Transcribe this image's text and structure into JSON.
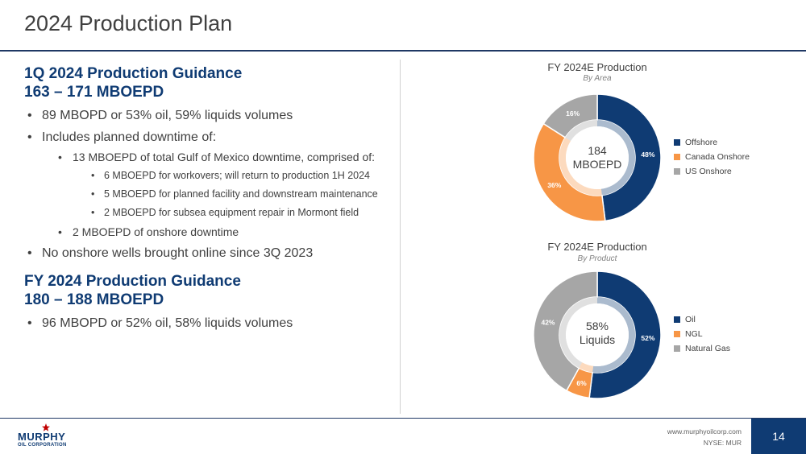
{
  "title": "2024 Production Plan",
  "left": {
    "q1_heading_line1": "1Q 2024 Production Guidance",
    "q1_heading_line2": "163 – 171 MBOEPD",
    "q1_bullets": {
      "b1": "89 MBOPD or 53% oil, 59% liquids volumes",
      "b2": "Includes planned downtime of:",
      "b2_sub1": "13 MBOEPD of total Gulf of Mexico downtime, comprised of:",
      "b2_sub1_a": "6 MBOEPD for workovers; will return to production 1H 2024",
      "b2_sub1_b": "5 MBOEPD for planned facility and downstream maintenance",
      "b2_sub1_c": "2 MBOEPD for subsea equipment repair in Mormont field",
      "b2_sub2": "2 MBOEPD of onshore downtime",
      "b3": "No onshore wells brought online since 3Q 2023"
    },
    "fy_heading_line1": "FY 2024 Production Guidance",
    "fy_heading_line2": "180 – 188 MBOEPD",
    "fy_bullets": {
      "b1": "96 MBOPD or 52% oil, 58% liquids volumes"
    }
  },
  "chart_data": [
    {
      "type": "pie",
      "title": "FY 2024E Production",
      "subtitle": "By Area",
      "center_label_line1": "184",
      "center_label_line2": "MBOEPD",
      "categories": [
        "Offshore",
        "Canada Onshore",
        "US Onshore"
      ],
      "values": [
        48,
        36,
        16
      ],
      "labels": [
        "48%",
        "36%",
        "16%"
      ],
      "colors": [
        "#0f3b73",
        "#f79646",
        "#a6a6a6"
      ],
      "legend": "right"
    },
    {
      "type": "pie",
      "title": "FY 2024E Production",
      "subtitle": "By Product",
      "center_label_line1": "58%",
      "center_label_line2": "Liquids",
      "categories": [
        "Oil",
        "NGL",
        "Natural Gas"
      ],
      "values": [
        52,
        6,
        42
      ],
      "labels": [
        "52%",
        "6%",
        "42%"
      ],
      "colors": [
        "#0f3b73",
        "#f79646",
        "#a6a6a6"
      ],
      "legend": "right"
    }
  ],
  "footer": {
    "logo_word": "MURPHY",
    "logo_sub": "OIL CORPORATION",
    "url": "www.murphyoilcorp.com",
    "ticker": "NYSE: MUR",
    "page_number": "14"
  }
}
